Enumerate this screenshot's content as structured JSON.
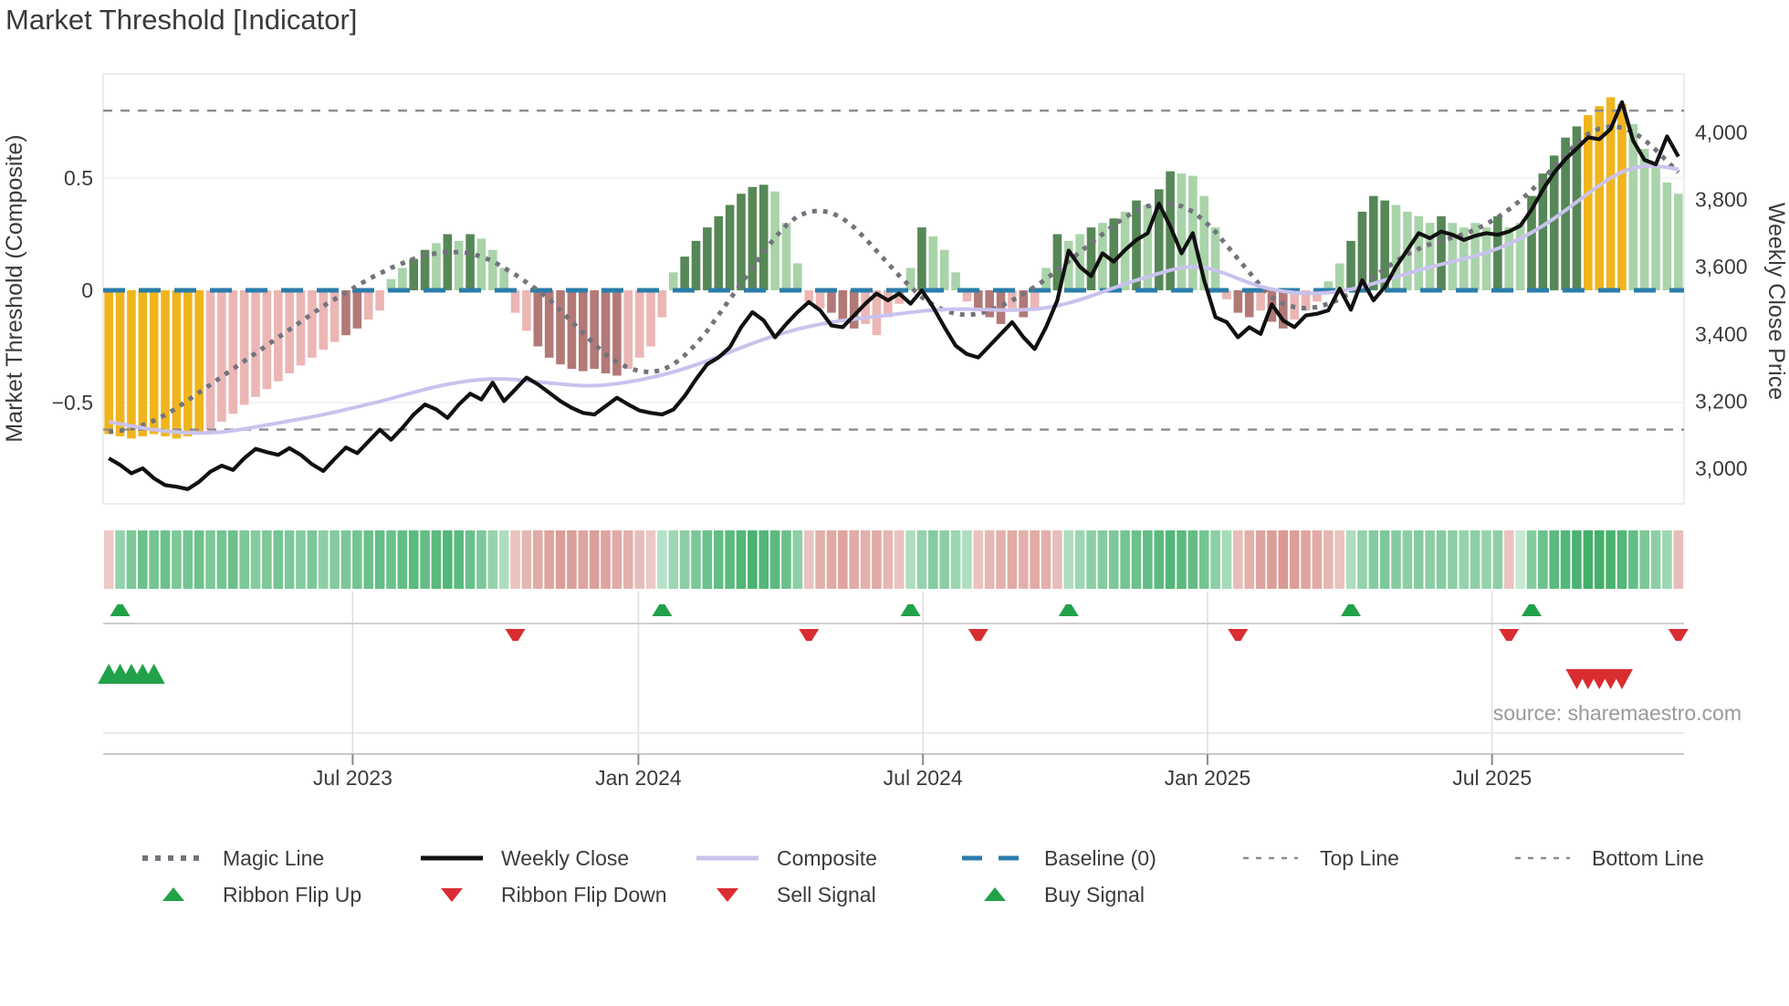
{
  "header": {
    "title": "Market Threshold [Indicator]"
  },
  "source": {
    "text": "source: sharemaestro.com"
  },
  "axes": {
    "left": {
      "title": "Market Threshold (Composite)",
      "ticks": [
        {
          "v": 0.5,
          "label": "0.5"
        },
        {
          "v": 0,
          "label": "0"
        },
        {
          "v": -0.5,
          "label": "−0.5"
        }
      ]
    },
    "right": {
      "title": "Weekly Close Price",
      "ticks": [
        {
          "v": 4000,
          "label": "4,000"
        },
        {
          "v": 3800,
          "label": "3,800"
        },
        {
          "v": 3600,
          "label": "3,600"
        },
        {
          "v": 3400,
          "label": "3,400"
        },
        {
          "v": 3200,
          "label": "3,200"
        },
        {
          "v": 3000,
          "label": "3,000"
        }
      ]
    },
    "x": {
      "labels": [
        {
          "week": 21.6,
          "label": "Jul 2023"
        },
        {
          "week": 46.9,
          "label": "Jan 2024"
        },
        {
          "week": 72.1,
          "label": "Jul 2024"
        },
        {
          "week": 97.3,
          "label": "Jan 2025"
        },
        {
          "week": 122.5,
          "label": "Jul 2025"
        }
      ]
    }
  },
  "legend": {
    "row1": [
      {
        "key": "magic",
        "label": "Magic Line",
        "type": "dotted",
        "color": "#73737d"
      },
      {
        "key": "weekly-close",
        "label": "Weekly Close",
        "type": "solid",
        "color": "#111111"
      },
      {
        "key": "composite",
        "label": "Composite",
        "type": "solid",
        "color": "#c9c2ee"
      },
      {
        "key": "baseline",
        "label": "Baseline (0)",
        "type": "dashed",
        "color": "#2b7dab"
      },
      {
        "key": "top-line",
        "label": "Top Line",
        "type": "fine-dash",
        "color": "#8c8c8c"
      },
      {
        "key": "bottom-line",
        "label": "Bottom Line",
        "type": "fine-dash",
        "color": "#8c8c8c"
      }
    ],
    "row2": [
      {
        "key": "ribbon-flip-up",
        "label": "Ribbon Flip Up",
        "type": "tri-up",
        "color": "#21a148"
      },
      {
        "key": "ribbon-flip-down",
        "label": "Ribbon Flip Down",
        "type": "tri-down",
        "color": "#d92d32"
      },
      {
        "key": "sell-signal",
        "label": "Sell Signal",
        "type": "tri-down",
        "color": "#d92d32"
      },
      {
        "key": "buy-signal",
        "label": "Buy Signal",
        "type": "tri-up",
        "color": "#21a148"
      }
    ]
  },
  "chart_data": {
    "type": "mixed: weekly bar histogram (left axis) + line overlays (price right axis) + signal ribbon heatmap + trade signal markers",
    "weeks": 140,
    "left_ylim": [
      -0.95,
      0.96
    ],
    "price_ylim": [
      2894,
      4174
    ],
    "baseline": 0,
    "top_line": 0.8,
    "bottom_line": -0.62,
    "grid_values_left": [
      0.5,
      -0.5
    ],
    "palette": {
      "gold": "#f0b51d",
      "pink": "#ebb6b4",
      "mauve": "#b27976",
      "light_green": "#a9d3a9",
      "dark_green": "#568756",
      "close": "#111111",
      "composite": "#c9c2ee",
      "magic": "#73737d",
      "baseline": "#2b7dab",
      "guide": "#8c8c8c",
      "flip_up": "#21a148",
      "flip_down": "#d92d32",
      "ribbon_green": "#2fa85c",
      "ribbon_red": "#c8655c"
    },
    "threshold_bars": [
      -0.64,
      -0.65,
      -0.66,
      -0.65,
      -0.64,
      -0.65,
      -0.66,
      -0.65,
      -0.64,
      -0.62,
      -0.585,
      -0.55,
      -0.51,
      -0.475,
      -0.44,
      -0.405,
      -0.37,
      -0.335,
      -0.3,
      -0.265,
      -0.23,
      -0.2,
      -0.17,
      -0.13,
      -0.09,
      0.05,
      0.1,
      0.14,
      0.18,
      0.21,
      0.25,
      0.22,
      0.25,
      0.23,
      0.18,
      0.1,
      -0.1,
      -0.18,
      -0.25,
      -0.3,
      -0.33,
      -0.35,
      -0.36,
      -0.35,
      -0.37,
      -0.38,
      -0.35,
      -0.3,
      -0.25,
      -0.12,
      0.08,
      0.15,
      0.22,
      0.28,
      0.33,
      0.38,
      0.43,
      0.46,
      0.47,
      0.44,
      0.3,
      0.12,
      -0.05,
      -0.08,
      -0.1,
      -0.14,
      -0.17,
      -0.15,
      -0.2,
      -0.12,
      -0.06,
      0.1,
      0.28,
      0.24,
      0.18,
      0.08,
      -0.05,
      -0.08,
      -0.12,
      -0.15,
      -0.08,
      -0.12,
      -0.09,
      0.1,
      0.25,
      0.22,
      0.25,
      0.28,
      0.3,
      0.32,
      0.35,
      0.4,
      0.38,
      0.45,
      0.53,
      0.52,
      0.51,
      0.42,
      0.28,
      -0.04,
      -0.1,
      -0.12,
      -0.09,
      -0.14,
      -0.17,
      -0.13,
      -0.09,
      -0.05,
      0.04,
      0.12,
      0.22,
      0.35,
      0.42,
      0.4,
      0.38,
      0.35,
      0.33,
      0.3,
      0.33,
      0.3,
      0.28,
      0.3,
      0.28,
      0.33,
      0.28,
      0.3,
      0.42,
      0.52,
      0.6,
      0.68,
      0.73,
      0.78,
      0.82,
      0.86,
      0.83,
      0.74,
      0.63,
      0.55,
      0.48,
      0.43
    ],
    "bar_colors": [
      "g",
      "g",
      "g",
      "g",
      "g",
      "g",
      "g",
      "g",
      "g",
      "p",
      "p",
      "p",
      "p",
      "p",
      "p",
      "p",
      "p",
      "p",
      "p",
      "p",
      "p",
      "m",
      "m",
      "p",
      "p",
      "lg",
      "lg",
      "dg",
      "dg",
      "lg",
      "dg",
      "lg",
      "dg",
      "lg",
      "lg",
      "lg",
      "p",
      "p",
      "m",
      "m",
      "m",
      "m",
      "m",
      "m",
      "m",
      "m",
      "p",
      "p",
      "p",
      "p",
      "lg",
      "dg",
      "dg",
      "dg",
      "dg",
      "dg",
      "dg",
      "dg",
      "dg",
      "lg",
      "lg",
      "lg",
      "p",
      "p",
      "m",
      "m",
      "m",
      "p",
      "p",
      "p",
      "p",
      "lg",
      "dg",
      "lg",
      "lg",
      "lg",
      "p",
      "m",
      "m",
      "m",
      "p",
      "m",
      "p",
      "lg",
      "dg",
      "lg",
      "lg",
      "dg",
      "lg",
      "dg",
      "lg",
      "dg",
      "lg",
      "dg",
      "dg",
      "lg",
      "lg",
      "lg",
      "lg",
      "p",
      "m",
      "m",
      "p",
      "m",
      "m",
      "p",
      "p",
      "p",
      "lg",
      "lg",
      "dg",
      "dg",
      "dg",
      "dg",
      "lg",
      "lg",
      "lg",
      "lg",
      "dg",
      "lg",
      "lg",
      "lg",
      "lg",
      "dg",
      "lg",
      "lg",
      "dg",
      "dg",
      "dg",
      "dg",
      "dg",
      "g",
      "g",
      "g",
      "g",
      "lg",
      "lg",
      "lg",
      "lg",
      "lg"
    ],
    "weekly_close": [
      3030,
      3010,
      2985,
      3000,
      2970,
      2950,
      2945,
      2938,
      2960,
      2990,
      3008,
      2995,
      3030,
      3058,
      3048,
      3040,
      3060,
      3040,
      3012,
      2992,
      3028,
      3062,
      3045,
      3080,
      3115,
      3085,
      3120,
      3160,
      3190,
      3175,
      3150,
      3190,
      3222,
      3205,
      3255,
      3200,
      3235,
      3270,
      3250,
      3225,
      3200,
      3180,
      3165,
      3160,
      3185,
      3210,
      3190,
      3172,
      3165,
      3160,
      3175,
      3215,
      3265,
      3310,
      3330,
      3360,
      3420,
      3465,
      3440,
      3390,
      3430,
      3465,
      3495,
      3470,
      3425,
      3420,
      3455,
      3490,
      3520,
      3500,
      3520,
      3490,
      3530,
      3480,
      3420,
      3365,
      3340,
      3330,
      3365,
      3400,
      3435,
      3390,
      3355,
      3420,
      3500,
      3648,
      3600,
      3572,
      3640,
      3615,
      3650,
      3680,
      3700,
      3788,
      3720,
      3640,
      3700,
      3560,
      3450,
      3435,
      3390,
      3420,
      3400,
      3488,
      3440,
      3420,
      3455,
      3460,
      3470,
      3535,
      3472,
      3560,
      3500,
      3540,
      3600,
      3650,
      3700,
      3685,
      3705,
      3695,
      3680,
      3692,
      3700,
      3695,
      3705,
      3722,
      3770,
      3830,
      3880,
      3920,
      3952,
      3985,
      3980,
      4010,
      4090,
      3975,
      3918,
      3905,
      3988,
      3928
    ],
    "composite": [
      3138,
      3132,
      3126,
      3120,
      3115,
      3111,
      3108,
      3106,
      3105,
      3106,
      3108,
      3112,
      3117,
      3123,
      3129,
      3135,
      3141,
      3147,
      3153,
      3160,
      3167,
      3175,
      3183,
      3191,
      3199,
      3208,
      3217,
      3226,
      3235,
      3243,
      3250,
      3256,
      3261,
      3264,
      3266,
      3266,
      3264,
      3261,
      3257,
      3254,
      3251,
      3248,
      3246,
      3246,
      3248,
      3252,
      3257,
      3263,
      3270,
      3278,
      3287,
      3297,
      3308,
      3320,
      3333,
      3346,
      3359,
      3372,
      3384,
      3395,
      3405,
      3414,
      3422,
      3429,
      3435,
      3440,
      3444,
      3448,
      3452,
      3456,
      3460,
      3464,
      3468,
      3471,
      3473,
      3474,
      3474,
      3473,
      3472,
      3471,
      3471,
      3472,
      3474,
      3478,
      3484,
      3492,
      3502,
      3513,
      3525,
      3537,
      3549,
      3560,
      3570,
      3580,
      3590,
      3597,
      3600,
      3598,
      3590,
      3578,
      3565,
      3552,
      3541,
      3533,
      3527,
      3523,
      3521,
      3521,
      3523,
      3527,
      3533,
      3541,
      3550,
      3560,
      3570,
      3580,
      3590,
      3599,
      3607,
      3615,
      3623,
      3632,
      3642,
      3654,
      3668,
      3684,
      3702,
      3722,
      3744,
      3768,
      3793,
      3818,
      3842,
      3864,
      3882,
      3894,
      3900,
      3900,
      3896,
      3890
    ],
    "magic_line": [
      -0.63,
      -0.625,
      -0.615,
      -0.6,
      -0.58,
      -0.555,
      -0.525,
      -0.49,
      -0.455,
      -0.42,
      -0.385,
      -0.35,
      -0.315,
      -0.28,
      -0.245,
      -0.21,
      -0.175,
      -0.14,
      -0.105,
      -0.07,
      -0.04,
      -0.01,
      0.02,
      0.05,
      0.075,
      0.1,
      0.12,
      0.14,
      0.155,
      0.165,
      0.17,
      0.17,
      0.165,
      0.15,
      0.13,
      0.1,
      0.07,
      0.035,
      0.0,
      -0.04,
      -0.09,
      -0.14,
      -0.19,
      -0.24,
      -0.285,
      -0.32,
      -0.345,
      -0.36,
      -0.365,
      -0.355,
      -0.33,
      -0.29,
      -0.24,
      -0.18,
      -0.11,
      -0.04,
      0.03,
      0.1,
      0.17,
      0.235,
      0.29,
      0.33,
      0.35,
      0.355,
      0.345,
      0.32,
      0.28,
      0.23,
      0.175,
      0.12,
      0.065,
      0.015,
      -0.03,
      -0.065,
      -0.09,
      -0.105,
      -0.11,
      -0.105,
      -0.09,
      -0.07,
      -0.045,
      -0.015,
      0.015,
      0.05,
      0.09,
      0.13,
      0.17,
      0.21,
      0.25,
      0.29,
      0.325,
      0.355,
      0.375,
      0.385,
      0.385,
      0.375,
      0.35,
      0.31,
      0.26,
      0.2,
      0.14,
      0.08,
      0.02,
      -0.03,
      -0.06,
      -0.075,
      -0.08,
      -0.075,
      -0.06,
      -0.04,
      -0.01,
      0.025,
      0.06,
      0.095,
      0.13,
      0.16,
      0.185,
      0.205,
      0.22,
      0.235,
      0.25,
      0.27,
      0.295,
      0.325,
      0.36,
      0.4,
      0.445,
      0.495,
      0.55,
      0.605,
      0.655,
      0.695,
      0.72,
      0.73,
      0.725,
      0.705,
      0.67,
      0.625,
      0.575,
      0.525
    ],
    "ribbon": [
      -0.25,
      0.45,
      0.6,
      0.7,
      0.65,
      0.7,
      0.6,
      0.65,
      0.7,
      0.6,
      0.65,
      0.7,
      0.6,
      0.55,
      0.6,
      0.65,
      0.6,
      0.55,
      0.6,
      0.5,
      0.55,
      0.6,
      0.65,
      0.7,
      0.75,
      0.7,
      0.75,
      0.8,
      0.75,
      0.8,
      0.85,
      0.8,
      0.7,
      0.6,
      0.45,
      0.3,
      -0.3,
      -0.4,
      -0.5,
      -0.55,
      -0.6,
      -0.6,
      -0.55,
      -0.6,
      -0.55,
      -0.5,
      -0.45,
      -0.35,
      -0.25,
      0.25,
      0.4,
      0.5,
      0.6,
      0.7,
      0.75,
      0.8,
      0.85,
      0.9,
      0.85,
      0.8,
      0.7,
      0.5,
      -0.3,
      -0.45,
      -0.5,
      -0.55,
      -0.5,
      -0.45,
      -0.5,
      -0.4,
      -0.3,
      0.3,
      0.45,
      0.55,
      0.5,
      0.4,
      0.3,
      -0.3,
      -0.4,
      -0.45,
      -0.5,
      -0.45,
      -0.5,
      -0.45,
      -0.35,
      0.3,
      0.4,
      0.5,
      0.55,
      0.6,
      0.65,
      0.7,
      0.75,
      0.8,
      0.85,
      0.8,
      0.75,
      0.65,
      0.5,
      0.35,
      -0.35,
      -0.45,
      -0.55,
      -0.6,
      -0.65,
      -0.6,
      -0.55,
      -0.5,
      -0.4,
      -0.3,
      0.3,
      0.45,
      0.55,
      0.6,
      0.55,
      0.5,
      0.55,
      0.5,
      0.55,
      0.5,
      0.45,
      0.5,
      0.45,
      0.5,
      -0.3,
      0.15,
      0.55,
      0.7,
      0.8,
      0.85,
      0.9,
      0.95,
      0.95,
      0.9,
      0.85,
      0.75,
      0.6,
      0.5,
      0.4,
      -0.35
    ],
    "signals": {
      "flip_up_weeks": [
        1,
        49,
        71,
        85,
        110,
        126
      ],
      "flip_down_weeks": [
        36,
        62,
        77,
        100,
        124,
        139
      ],
      "buy_weeks": [
        0,
        1,
        2,
        3,
        4
      ],
      "sell_weeks": [
        130,
        131,
        132,
        133,
        134
      ]
    }
  }
}
